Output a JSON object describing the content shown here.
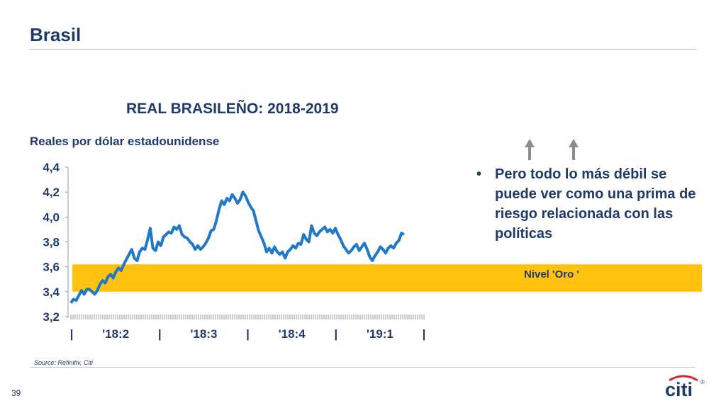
{
  "slide": {
    "title": "Brasil",
    "page_number": "39",
    "source": "Source: Refinitiv, Citi",
    "bullet": "Pero todo lo más débil se puede ver como una prima de riesgo relacionada con las políticas",
    "band_label": "Nivel 'Oro '",
    "logo_text": "citi",
    "logo_mark": "®"
  },
  "colors": {
    "title": "#1f3a6b",
    "line": "#1f78c8",
    "band": "#ffc20e",
    "arrow": "#8c8c8c"
  },
  "icons": [
    "up-arrow-icon",
    "up-arrow-icon"
  ],
  "chart_data": {
    "type": "line",
    "title": "REAL BRASILEÑO: 2018-2019",
    "ylabel": "Reales por dólar estadounidense",
    "xlabel": "",
    "ylim": [
      3.2,
      4.4
    ],
    "yticks": [
      "3,2",
      "3,4",
      "3,6",
      "3,8",
      "4,0",
      "4,2",
      "4,4"
    ],
    "ytick_values": [
      3.2,
      3.4,
      3.6,
      3.8,
      4.0,
      4.2,
      4.4
    ],
    "xtick_labels": [
      "|",
      "'18:2",
      "|",
      "'18:3",
      "|",
      "'18:4",
      "|",
      "'19:1",
      "|"
    ],
    "grid": false,
    "band": {
      "from": 3.4,
      "to": 3.62,
      "label": "Nivel 'Oro '"
    },
    "series": [
      {
        "values": [
          3.31,
          3.34,
          3.33,
          3.37,
          3.41,
          3.38,
          3.42,
          3.42,
          3.4,
          3.38,
          3.41,
          3.46,
          3.49,
          3.47,
          3.52,
          3.54,
          3.51,
          3.56,
          3.59,
          3.57,
          3.62,
          3.66,
          3.7,
          3.74,
          3.67,
          3.65,
          3.72,
          3.75,
          3.74,
          3.82,
          3.91,
          3.75,
          3.73,
          3.8,
          3.77,
          3.84,
          3.86,
          3.88,
          3.87,
          3.92,
          3.9,
          3.93,
          3.86,
          3.84,
          3.83,
          3.8,
          3.78,
          3.74,
          3.77,
          3.74,
          3.76,
          3.79,
          3.83,
          3.89,
          3.9,
          3.97,
          4.06,
          4.13,
          4.1,
          4.15,
          4.13,
          4.18,
          4.15,
          4.11,
          4.14,
          4.2,
          4.17,
          4.12,
          4.08,
          4.05,
          3.97,
          3.89,
          3.84,
          3.79,
          3.72,
          3.75,
          3.71,
          3.76,
          3.72,
          3.7,
          3.72,
          3.67,
          3.72,
          3.74,
          3.77,
          3.75,
          3.79,
          3.78,
          3.86,
          3.82,
          3.8,
          3.93,
          3.87,
          3.85,
          3.88,
          3.9,
          3.92,
          3.88,
          3.9,
          3.87,
          3.91,
          3.86,
          3.82,
          3.77,
          3.74,
          3.71,
          3.73,
          3.76,
          3.78,
          3.73,
          3.76,
          3.79,
          3.74,
          3.68,
          3.65,
          3.69,
          3.72,
          3.76,
          3.74,
          3.71,
          3.75,
          3.77,
          3.75,
          3.79,
          3.81,
          3.87,
          3.86
        ]
      }
    ]
  }
}
